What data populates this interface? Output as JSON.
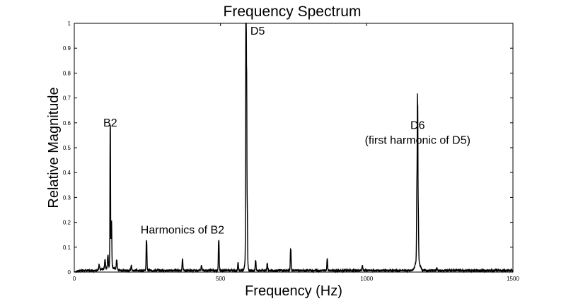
{
  "chart_data": {
    "type": "line",
    "title": "Frequency Spectrum",
    "xlabel": "Frequency (Hz)",
    "ylabel": "Relative Magnitude",
    "xlim": [
      0,
      1500
    ],
    "ylim": [
      0,
      1
    ],
    "x_ticks": [
      0,
      500,
      1000,
      1500
    ],
    "y_ticks": [
      0,
      0.1,
      0.2,
      0.3,
      0.4,
      0.5,
      0.6,
      0.7,
      0.8,
      0.9,
      1
    ],
    "x_tick_labels": [
      "0",
      "500",
      "1000",
      "1500"
    ],
    "y_tick_labels": [
      "0",
      "0.1",
      "0.2",
      "0.3",
      "0.4",
      "0.5",
      "0.6",
      "0.7",
      "0.8",
      "0.9",
      "1"
    ],
    "line_color": "#000000",
    "noise_floor": 0.008,
    "peaks": [
      {
        "x": 85,
        "y": 0.02
      },
      {
        "x": 105,
        "y": 0.035
      },
      {
        "x": 115,
        "y": 0.05
      },
      {
        "x": 123,
        "y": 0.57
      },
      {
        "x": 127,
        "y": 0.18
      },
      {
        "x": 145,
        "y": 0.04
      },
      {
        "x": 195,
        "y": 0.02
      },
      {
        "x": 247,
        "y": 0.12
      },
      {
        "x": 370,
        "y": 0.045
      },
      {
        "x": 435,
        "y": 0.02
      },
      {
        "x": 494,
        "y": 0.12
      },
      {
        "x": 560,
        "y": 0.03
      },
      {
        "x": 587,
        "y": 1.0
      },
      {
        "x": 589,
        "y": 0.62
      },
      {
        "x": 591,
        "y": 0.22
      },
      {
        "x": 620,
        "y": 0.04
      },
      {
        "x": 660,
        "y": 0.03
      },
      {
        "x": 740,
        "y": 0.085
      },
      {
        "x": 865,
        "y": 0.045
      },
      {
        "x": 985,
        "y": 0.02
      },
      {
        "x": 1174,
        "y": 0.49
      },
      {
        "x": 1172,
        "y": 0.3
      },
      {
        "x": 1176,
        "y": 0.18
      },
      {
        "x": 1240,
        "y": 0.01
      }
    ],
    "annotations": [
      {
        "text": "B2",
        "x": 123,
        "y": 0.585
      },
      {
        "text": "Harmonics of B2",
        "x": 370,
        "y": 0.155
      },
      {
        "text": "D5",
        "x": 627,
        "y": 0.955
      },
      {
        "text": "D6",
        "x": 1174,
        "y": 0.575
      },
      {
        "text": "(first harmonic of D5)",
        "x": 1174,
        "y": 0.515
      }
    ],
    "grid": false,
    "legend": "none"
  }
}
